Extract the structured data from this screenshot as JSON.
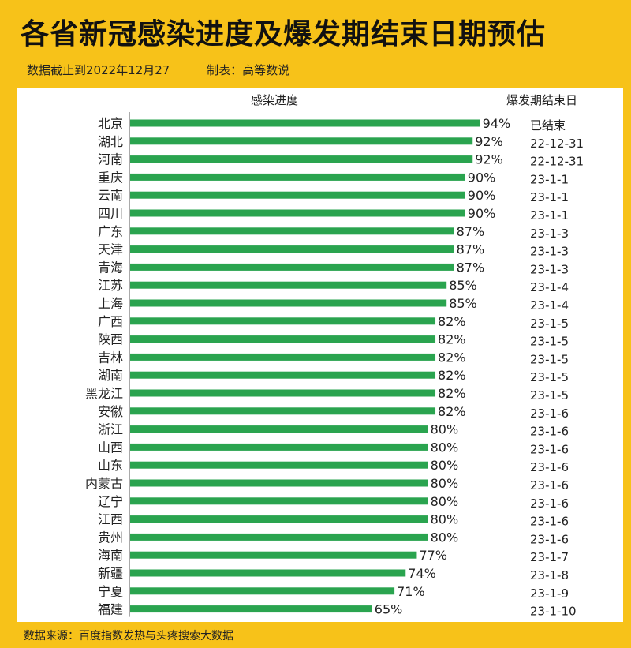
{
  "title": "各省新冠感染进度及爆发期结束日期预估",
  "subtitle": {
    "date": "数据截止到2022年12月27",
    "maker": "制表：高等数说"
  },
  "footer": "数据来源：百度指数发热与头疼搜索大数据",
  "colors": {
    "background": "#f7c219",
    "bar": "#2aa44f",
    "axis": "#555555"
  },
  "chart_data": {
    "type": "bar",
    "orientation": "horizontal",
    "header_progress": "感染进度",
    "header_end_date": "爆发期结束日",
    "xlim": [
      0,
      100
    ],
    "categories": [
      "北京",
      "湖北",
      "河南",
      "重庆",
      "云南",
      "四川",
      "广东",
      "天津",
      "青海",
      "江苏",
      "上海",
      "广西",
      "陕西",
      "吉林",
      "湖南",
      "黑龙江",
      "安徽",
      "浙江",
      "山西",
      "山东",
      "内蒙古",
      "辽宁",
      "江西",
      "贵州",
      "海南",
      "新疆",
      "宁夏",
      "福建"
    ],
    "values": [
      94,
      92,
      92,
      90,
      90,
      90,
      87,
      87,
      87,
      85,
      85,
      82,
      82,
      82,
      82,
      82,
      82,
      80,
      80,
      80,
      80,
      80,
      80,
      80,
      77,
      74,
      71,
      65
    ],
    "value_labels": [
      "94%",
      "92%",
      "92%",
      "90%",
      "90%",
      "90%",
      "87%",
      "87%",
      "87%",
      "85%",
      "85%",
      "82%",
      "82%",
      "82%",
      "82%",
      "82%",
      "82%",
      "80%",
      "80%",
      "80%",
      "80%",
      "80%",
      "80%",
      "80%",
      "77%",
      "74%",
      "71%",
      "65%"
    ],
    "end_dates": [
      "已结束",
      "22-12-31",
      "22-12-31",
      "23-1-1",
      "23-1-1",
      "23-1-1",
      "23-1-3",
      "23-1-3",
      "23-1-3",
      "23-1-4",
      "23-1-4",
      "23-1-5",
      "23-1-5",
      "23-1-5",
      "23-1-5",
      "23-1-5",
      "23-1-6",
      "23-1-6",
      "23-1-6",
      "23-1-6",
      "23-1-6",
      "23-1-6",
      "23-1-6",
      "23-1-6",
      "23-1-7",
      "23-1-8",
      "23-1-9",
      "23-1-10"
    ]
  }
}
